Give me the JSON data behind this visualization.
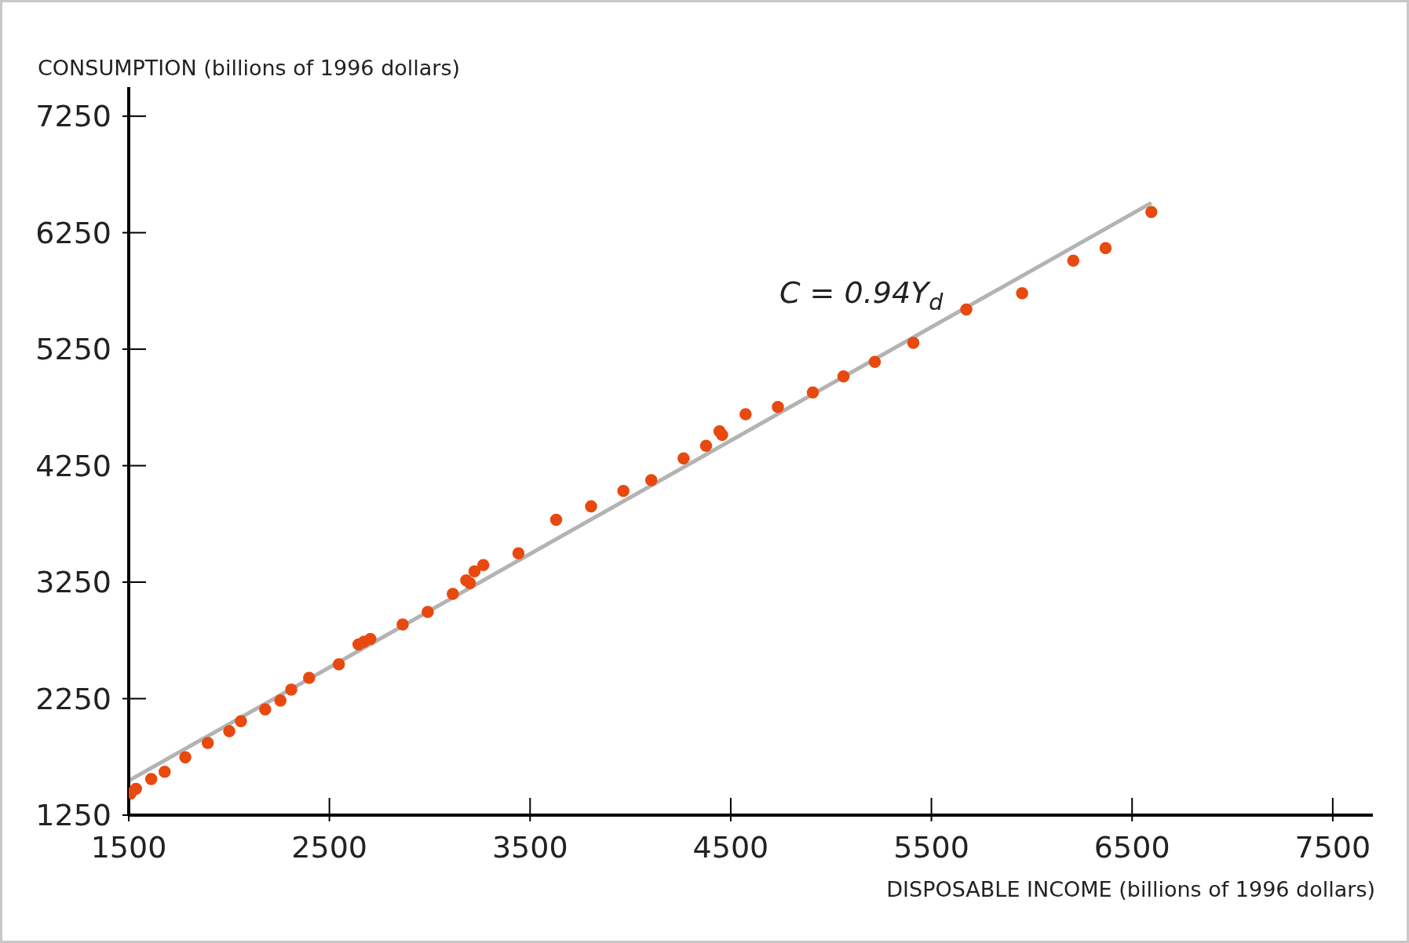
{
  "chart_data": {
    "type": "scatter",
    "xlabel": "DISPOSABLE INCOME (billions of 1996 dollars)",
    "ylabel": "CONSUMPTION (billions of 1996 dollars)",
    "xlim": [
      1500,
      7700
    ],
    "ylim": [
      1250,
      7500
    ],
    "xticks": [
      1500,
      2500,
      3500,
      4500,
      5500,
      6500,
      7500
    ],
    "yticks": [
      1250,
      2250,
      3250,
      4250,
      5250,
      6250,
      7250
    ],
    "grid": false,
    "legend": false,
    "marker": "circle",
    "annotations": [
      "C = 0.94Y$_{d}$"
    ],
    "series": [
      {
        "type": "scatter",
        "color": "#e8490f",
        "x": [
          1509,
          1536,
          1612,
          1679,
          1782,
          1894,
          2001,
          2059,
          2180,
          2256,
          2310,
          2399,
          2547,
          2645,
          2672,
          2704,
          2865,
          2990,
          3115,
          3182,
          3200,
          3223,
          3267,
          3442,
          3630,
          3804,
          3965,
          4104,
          4265,
          4377,
          4444,
          4457,
          4574,
          4735,
          4909,
          5062,
          5218,
          5410,
          5674,
          5952,
          6207,
          6368,
          6596
        ],
        "values": [
          1436,
          1475,
          1560,
          1622,
          1746,
          1870,
          1971,
          2056,
          2157,
          2234,
          2328,
          2428,
          2545,
          2715,
          2738,
          2762,
          2886,
          2994,
          3149,
          3266,
          3242,
          3343,
          3397,
          3498,
          3785,
          3901,
          4033,
          4126,
          4312,
          4421,
          4545,
          4514,
          4692,
          4754,
          4878,
          5017,
          5141,
          5304,
          5591,
          5731,
          6010,
          6118,
          6428
        ]
      },
      {
        "type": "line",
        "color": "#b3b3b3",
        "line_style": "solid",
        "marker": "none",
        "x": [
          1500,
          6596
        ],
        "values": [
          1545,
          6506
        ]
      }
    ]
  }
}
